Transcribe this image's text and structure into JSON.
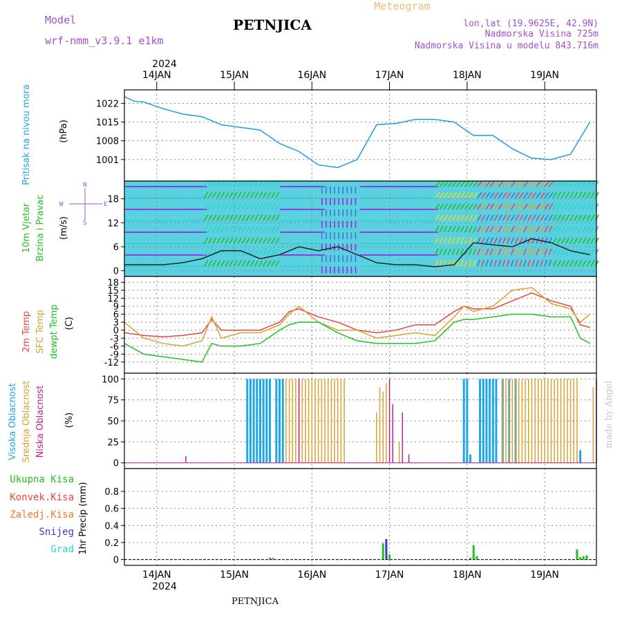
{
  "header": {
    "model_label": "Model",
    "model_name": "wrf-nmm_v3.9.1 e1km",
    "station": "PETNJICA",
    "meteogram": "Meteogram",
    "lonlat": "lon,lat (19.9625E, 42.9N)",
    "altitude": "Nadmorska Visina 725m",
    "model_altitude": "Nadmorska Visina u modelu 843.716m"
  },
  "footer": {
    "station": "PETNJICA",
    "credit": "made by Angel"
  },
  "time_axis": {
    "year": "2024",
    "days": [
      "14JAN",
      "15JAN",
      "16JAN",
      "17JAN",
      "18JAN",
      "19JAN"
    ]
  },
  "colors": {
    "pressure": "#1e9be6",
    "temp2m": "#e8453c",
    "sfc": "#d9a030",
    "dewpt": "#22c022",
    "cloud_high": "#1ea6e6",
    "cloud_mid": "#d9a030",
    "cloud_low": "#c0208c",
    "precip_total": "#22c022",
    "precip_conv": "#e8453c",
    "precip_frz": "#f07a2a",
    "snow": "#3a3ad6",
    "graupel": "#2ad6c6",
    "wind_panel_label": "#22c022",
    "compass": "#a050d0"
  },
  "chart_data": [
    {
      "type": "line",
      "title": "",
      "ylabel": "(hPa)",
      "side_label": "Pritisak na nivou mora",
      "ylim": [
        995,
        1025
      ],
      "yticks": [
        1001,
        1008,
        1015,
        1022
      ],
      "x": [
        0,
        3,
        6,
        12,
        18,
        24,
        30,
        36,
        42,
        48,
        54,
        60,
        66,
        72,
        78,
        84,
        90,
        96,
        102,
        108,
        114,
        120,
        126,
        132,
        138,
        144
      ],
      "series": [
        {
          "values": [
            1024.5,
            1022.8,
            1022.5,
            1020,
            1018,
            1017,
            1014,
            1013,
            1012,
            1007,
            1004,
            999,
            998,
            1001,
            1014,
            1014.5,
            1016,
            1016,
            1015,
            1010,
            1010,
            1005,
            1001.5,
            1001,
            1003,
            1015
          ]
        }
      ]
    },
    {
      "type": "line",
      "title": "",
      "ylabel": "(m/s)",
      "side_label": [
        "10m Vjetar",
        "Brzina i Pravac"
      ],
      "compass": {
        "n": "N",
        "s": "S",
        "e": "E",
        "w": "W"
      },
      "ylim": [
        0,
        21
      ],
      "yticks": [
        0,
        6,
        12,
        18
      ],
      "x": [
        0,
        6,
        12,
        18,
        24,
        30,
        36,
        42,
        48,
        54,
        60,
        66,
        72,
        78,
        84,
        90,
        96,
        102,
        108,
        114,
        120,
        126,
        132,
        138,
        144
      ],
      "series": [
        {
          "values": [
            1.5,
            1.5,
            1.5,
            2,
            3,
            5,
            5,
            3,
            4,
            6,
            5,
            6,
            4,
            2,
            1.5,
            1.5,
            1,
            1.5,
            7,
            6.5,
            6,
            8,
            7,
            5,
            4
          ]
        }
      ]
    },
    {
      "type": "line",
      "title": "",
      "ylabel": "(C)",
      "side_label": [
        "2m Temp",
        "SFC Temp",
        "dewpt Temp"
      ],
      "ylim": [
        -14,
        18
      ],
      "yticks": [
        -12,
        -9,
        -6,
        -3,
        0,
        3,
        6,
        9,
        12,
        15,
        18
      ],
      "x": [
        0,
        6,
        12,
        18,
        24,
        27,
        30,
        36,
        42,
        48,
        51,
        54,
        60,
        66,
        72,
        78,
        84,
        90,
        96,
        102,
        105,
        108,
        114,
        120,
        126,
        132,
        138,
        141,
        144
      ],
      "series": [
        {
          "name": "2m Temp",
          "values": [
            -1,
            -2,
            -2.5,
            -2,
            -1,
            4,
            0,
            0,
            0,
            3,
            7,
            8,
            5,
            3,
            0,
            -1,
            0,
            2,
            2,
            7,
            9,
            8,
            8,
            11,
            14,
            11,
            9,
            2,
            1
          ]
        },
        {
          "name": "SFC Temp",
          "values": [
            3,
            -3,
            -5,
            -6,
            -4,
            5,
            -3,
            -1,
            -1,
            2,
            6,
            9,
            3,
            0,
            0,
            -3,
            -2,
            -1,
            -2,
            5,
            9,
            7,
            9,
            15,
            16,
            10,
            8,
            3,
            6
          ]
        },
        {
          "name": "dewpt Temp",
          "values": [
            -5,
            -9,
            -10,
            -11,
            -12,
            -5,
            -6,
            -6,
            -5,
            0,
            2,
            3,
            3,
            -1,
            -4,
            -5,
            -5,
            -5,
            -4,
            3,
            4,
            4,
            5,
            6,
            6,
            5,
            5,
            -3,
            -5
          ]
        }
      ]
    },
    {
      "type": "bar",
      "title": "",
      "ylabel": "(%)",
      "side_label": [
        "Visoka Oblacnost",
        "Srednja Oblacnost",
        "Niska Oblacnost"
      ],
      "ylim": [
        0,
        100
      ],
      "yticks": [
        0,
        25,
        50,
        75,
        100
      ],
      "series": [
        {
          "name": "Visoka Oblacnost",
          "x": [
            38,
            39,
            40,
            41,
            42,
            43,
            44,
            45,
            47,
            48,
            49,
            105,
            106,
            107,
            110,
            111,
            112,
            113,
            114,
            115,
            117,
            119,
            121,
            141
          ],
          "values": [
            100,
            100,
            100,
            100,
            100,
            100,
            100,
            100,
            100,
            100,
            100,
            100,
            100,
            10,
            100,
            100,
            100,
            100,
            100,
            100,
            100,
            100,
            100,
            15
          ]
        },
        {
          "name": "Srednja Oblacnost",
          "x": [
            50,
            51,
            52,
            53,
            54,
            55,
            56,
            57,
            58,
            59,
            60,
            61,
            62,
            63,
            64,
            65,
            66,
            67,
            68,
            78,
            79,
            80,
            81,
            85,
            117,
            118,
            119,
            120,
            121,
            122,
            123,
            124,
            125,
            126,
            127,
            128,
            129,
            130,
            131,
            132,
            133,
            134,
            135,
            136,
            137,
            138,
            139,
            140,
            145
          ],
          "values": [
            100,
            100,
            100,
            100,
            100,
            100,
            100,
            100,
            100,
            100,
            100,
            100,
            100,
            100,
            100,
            100,
            100,
            100,
            100,
            60,
            90,
            85,
            95,
            25,
            100,
            100,
            100,
            100,
            100,
            100,
            100,
            100,
            100,
            100,
            100,
            100,
            100,
            100,
            100,
            100,
            100,
            100,
            100,
            100,
            100,
            100,
            100,
            100,
            90
          ]
        },
        {
          "name": "Niska Oblacnost",
          "x": [
            19,
            54,
            82,
            83,
            86,
            88,
            146
          ],
          "values": [
            8,
            100,
            100,
            70,
            60,
            10,
            100
          ]
        }
      ]
    },
    {
      "type": "bar",
      "title": "",
      "ylabel": "1hr Precip (mm)",
      "side_label": [
        "Ukupna Kisa",
        "Konvek.Kisa",
        "Zaledj.Kisa",
        "Snijeg",
        "Grad"
      ],
      "ylim": [
        0,
        1
      ],
      "yticks": [
        0,
        0.2,
        0.4,
        0.6,
        0.8
      ],
      "ytick_labels": [
        "0",
        "0.2",
        "0.4",
        "0.6",
        "0.8"
      ],
      "series": [
        {
          "name": "Ukupna Kisa",
          "x": [
            45,
            46,
            80,
            81,
            82,
            107,
            108,
            109,
            140,
            141,
            142,
            143
          ],
          "values": [
            0.02,
            0.02,
            0.19,
            0.23,
            0.06,
            0.02,
            0.17,
            0.04,
            0.12,
            0.03,
            0.04,
            0.05
          ]
        },
        {
          "name": "Snijeg",
          "x": [
            81
          ],
          "values": [
            0.24
          ]
        }
      ]
    }
  ]
}
